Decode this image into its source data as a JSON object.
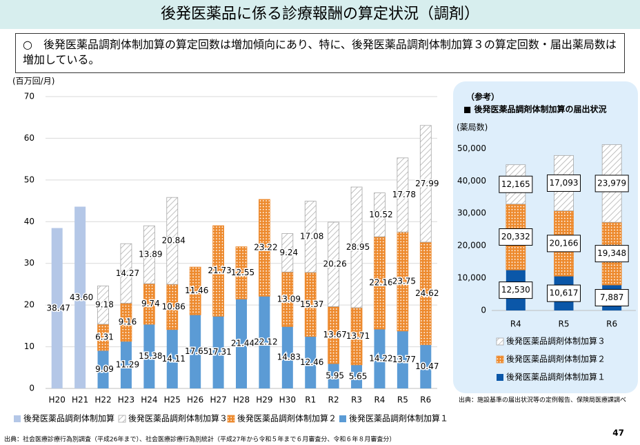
{
  "header": {
    "title": "後発医薬品に係る診療報酬の算定状況（調剤）",
    "summary": "○　後発医薬品調剤体制加算の算定回数は増加傾向にあり、特に、後発医薬品調剤体制加算３の算定回数・届出薬局数は増加している。"
  },
  "page_number": "47",
  "chart_data": [
    {
      "type": "bar",
      "stacked": true,
      "y_label": "(百万回/月)",
      "source": "出典：社会医療診療行為別調査（平成26年まで）、社会医療診療行為別統計（平成27年から令和５年まで６月審査分、令和６年８月審査分）",
      "categories": [
        "H20",
        "H21",
        "H22",
        "H23",
        "H24",
        "H25",
        "H26",
        "H27",
        "H28",
        "H29",
        "H30",
        "R1",
        "R2",
        "R3",
        "R4",
        "R5",
        "R6"
      ],
      "ylim": [
        0,
        70
      ],
      "yticks": [
        0,
        10,
        20,
        30,
        40,
        50,
        60,
        70
      ],
      "grid": true,
      "series": [
        {
          "name": "後発医薬品調剤体制加算",
          "color": "#b4c7e7",
          "pattern": "solid",
          "values": [
            38.47,
            43.6,
            null,
            null,
            null,
            null,
            null,
            null,
            null,
            null,
            null,
            null,
            null,
            null,
            null,
            null,
            null
          ],
          "value_labels": [
            "38.47",
            "43.60",
            null,
            null,
            null,
            null,
            null,
            null,
            null,
            null,
            null,
            null,
            null,
            null,
            null,
            null,
            null
          ]
        },
        {
          "name": "後発医薬品調剤体制加算３",
          "color": "#a6a6a6",
          "pattern": "hatch",
          "values": [
            null,
            null,
            9.18,
            14.27,
            13.89,
            20.84,
            null,
            null,
            null,
            null,
            9.24,
            17.08,
            20.26,
            28.95,
            10.52,
            17.78,
            27.99
          ]
        },
        {
          "name": "後発医薬品調剤体制加算２",
          "color": "#ed8a2e",
          "pattern": "dots",
          "values": [
            null,
            null,
            6.31,
            9.16,
            9.74,
            10.86,
            11.46,
            21.73,
            12.55,
            23.22,
            13.09,
            15.37,
            13.67,
            13.71,
            22.16,
            23.75,
            24.62
          ]
        },
        {
          "name": "後発医薬品調剤体制加算１",
          "color": "#5b9bd5",
          "pattern": "solid",
          "values": [
            null,
            null,
            9.09,
            11.29,
            15.38,
            14.11,
            17.65,
            17.31,
            21.44,
            22.12,
            14.83,
            12.46,
            5.95,
            5.65,
            14.22,
            13.77,
            10.47
          ]
        }
      ]
    },
    {
      "type": "bar",
      "stacked": true,
      "subtitle": "（参考）",
      "title": "■ 後発医薬品調剤体制加算の届出状況",
      "y_label": "(薬局数)",
      "source": "出典：施設基準の届出状況等の定例報告、保険局医療課調べ",
      "categories": [
        "R4",
        "R5",
        "R6"
      ],
      "ylim": [
        0,
        52000
      ],
      "yticks": [
        0,
        {
          "value": 10000,
          "label": "10,000"
        },
        {
          "value": 20000,
          "label": "20,000"
        },
        {
          "value": 30000,
          "label": "30,000"
        },
        {
          "value": 40000,
          "label": "40,000"
        },
        {
          "value": 50000,
          "label": "50,000"
        }
      ],
      "grid": false,
      "series": [
        {
          "name": "後発医薬品調剤体制加算３",
          "color": "#a6a6a6",
          "pattern": "hatch",
          "values": [
            12165,
            17093,
            23979
          ],
          "value_labels": [
            "12,165",
            "17,093",
            "23,979"
          ]
        },
        {
          "name": "後発医薬品調剤体制加算２",
          "color": "#ed8a2e",
          "pattern": "dots",
          "values": [
            20332,
            20166,
            19348
          ],
          "value_labels": [
            "20,332",
            "20,166",
            "19,348"
          ]
        },
        {
          "name": "後発医薬品調剤体制加算１",
          "color": "#0b57a8",
          "pattern": "solid",
          "values": [
            12530,
            10617,
            7887
          ],
          "value_labels": [
            "12,530",
            "10,617",
            "7,887"
          ]
        }
      ]
    }
  ]
}
